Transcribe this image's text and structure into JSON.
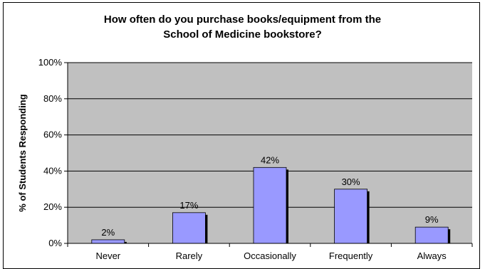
{
  "chart_data": {
    "type": "bar",
    "title_lines": [
      "How often do you purchase books/equipment from the",
      "School of Medicine bookstore?"
    ],
    "xlabel": "",
    "ylabel": "% of Students Responding",
    "categories": [
      "Never",
      "Rarely",
      "Occasionally",
      "Frequently",
      "Always"
    ],
    "values": [
      2,
      17,
      42,
      30,
      9
    ],
    "value_labels": [
      "2%",
      "17%",
      "42%",
      "30%",
      "9%"
    ],
    "ylim": [
      0,
      100
    ],
    "yticks": [
      0,
      20,
      40,
      60,
      80,
      100
    ],
    "ytick_labels": [
      "0%",
      "20%",
      "40%",
      "60%",
      "80%",
      "100%"
    ],
    "grid": true,
    "legend": "none",
    "colors": {
      "bar": "#9999ff",
      "bar_shadow": "#000000",
      "plot_background": "#c0c0c0",
      "gridline": "#000000"
    }
  }
}
